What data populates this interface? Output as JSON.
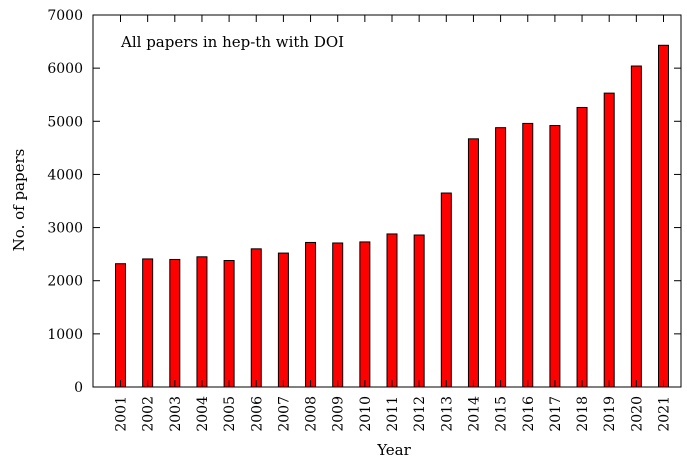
{
  "chart_data": {
    "type": "bar",
    "title": "",
    "annotation": "All papers in hep-th with DOI",
    "xlabel": "Year",
    "ylabel": "No. of papers",
    "ylim": [
      0,
      7000
    ],
    "yticks": [
      0,
      1000,
      2000,
      3000,
      4000,
      5000,
      6000,
      7000
    ],
    "categories": [
      "2001",
      "2002",
      "2003",
      "2004",
      "2005",
      "2006",
      "2007",
      "2008",
      "2009",
      "2010",
      "2011",
      "2012",
      "2013",
      "2014",
      "2015",
      "2016",
      "2017",
      "2018",
      "2019",
      "2020",
      "2021"
    ],
    "values": [
      2320,
      2410,
      2400,
      2450,
      2380,
      2600,
      2520,
      2720,
      2710,
      2730,
      2880,
      2860,
      3650,
      4670,
      4880,
      4960,
      4920,
      5260,
      5530,
      6040,
      6430
    ],
    "bar_color": "#ff0000",
    "edge_color": "#000000",
    "grid": false,
    "legend": "none"
  }
}
